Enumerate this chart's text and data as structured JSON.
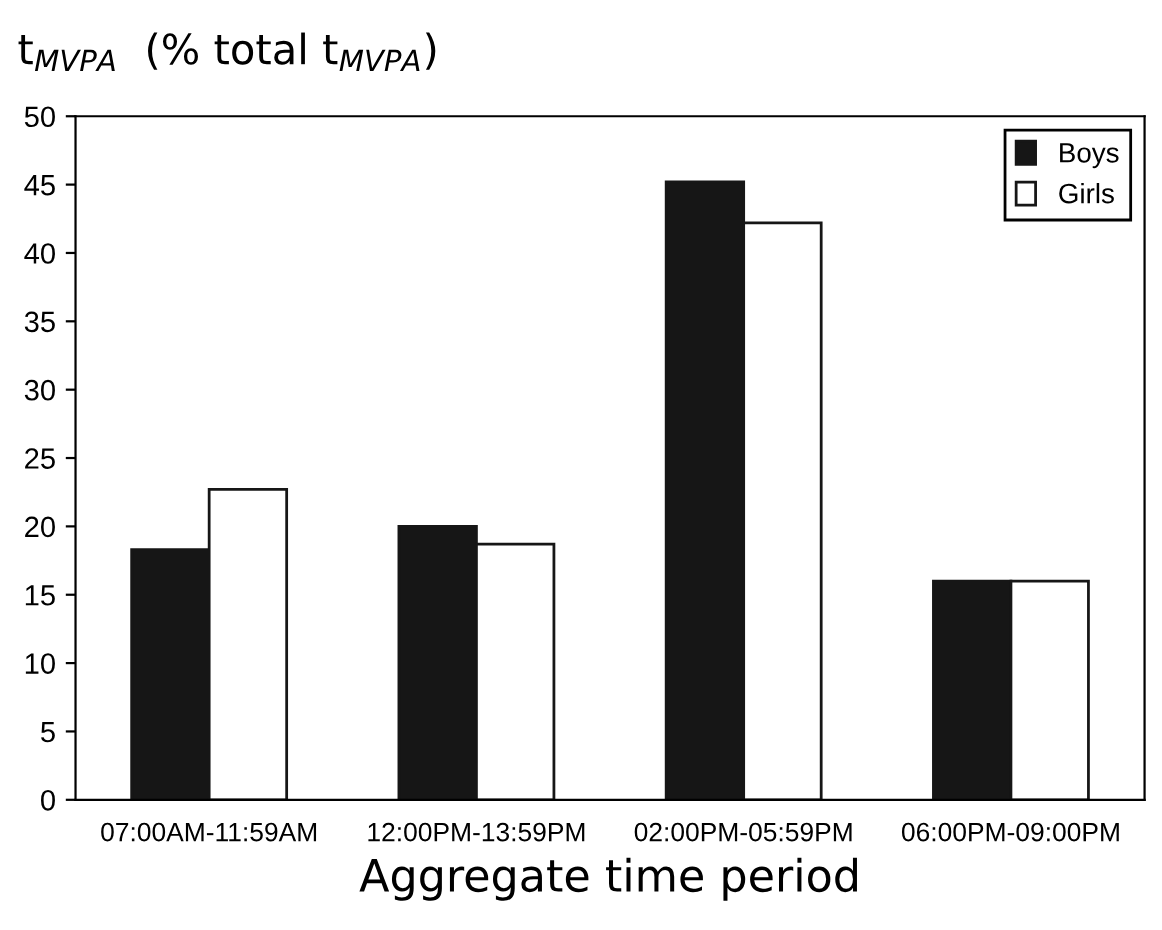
{
  "chart_data": {
    "type": "bar",
    "title": "t$_{MVPA}$  (% total t$_{MVPA}$)",
    "xlabel": "Aggregate time period",
    "categories": [
      "07:00AM-11:59AM",
      "12:00PM-13:59PM",
      "02:00PM-05:59PM",
      "06:00PM-09:00PM"
    ],
    "series": [
      {
        "name": "Boys",
        "color": "#161616",
        "values": [
          18.3,
          20.0,
          45.2,
          16.0
        ]
      },
      {
        "name": "Girls",
        "color": "#ffffff",
        "values": [
          22.7,
          18.7,
          42.2,
          16.0
        ]
      }
    ],
    "ylim": [
      0,
      50
    ],
    "yticks": [
      0,
      5,
      10,
      15,
      20,
      25,
      30,
      35,
      40,
      45,
      50
    ],
    "grid": false,
    "legend": "top right"
  }
}
